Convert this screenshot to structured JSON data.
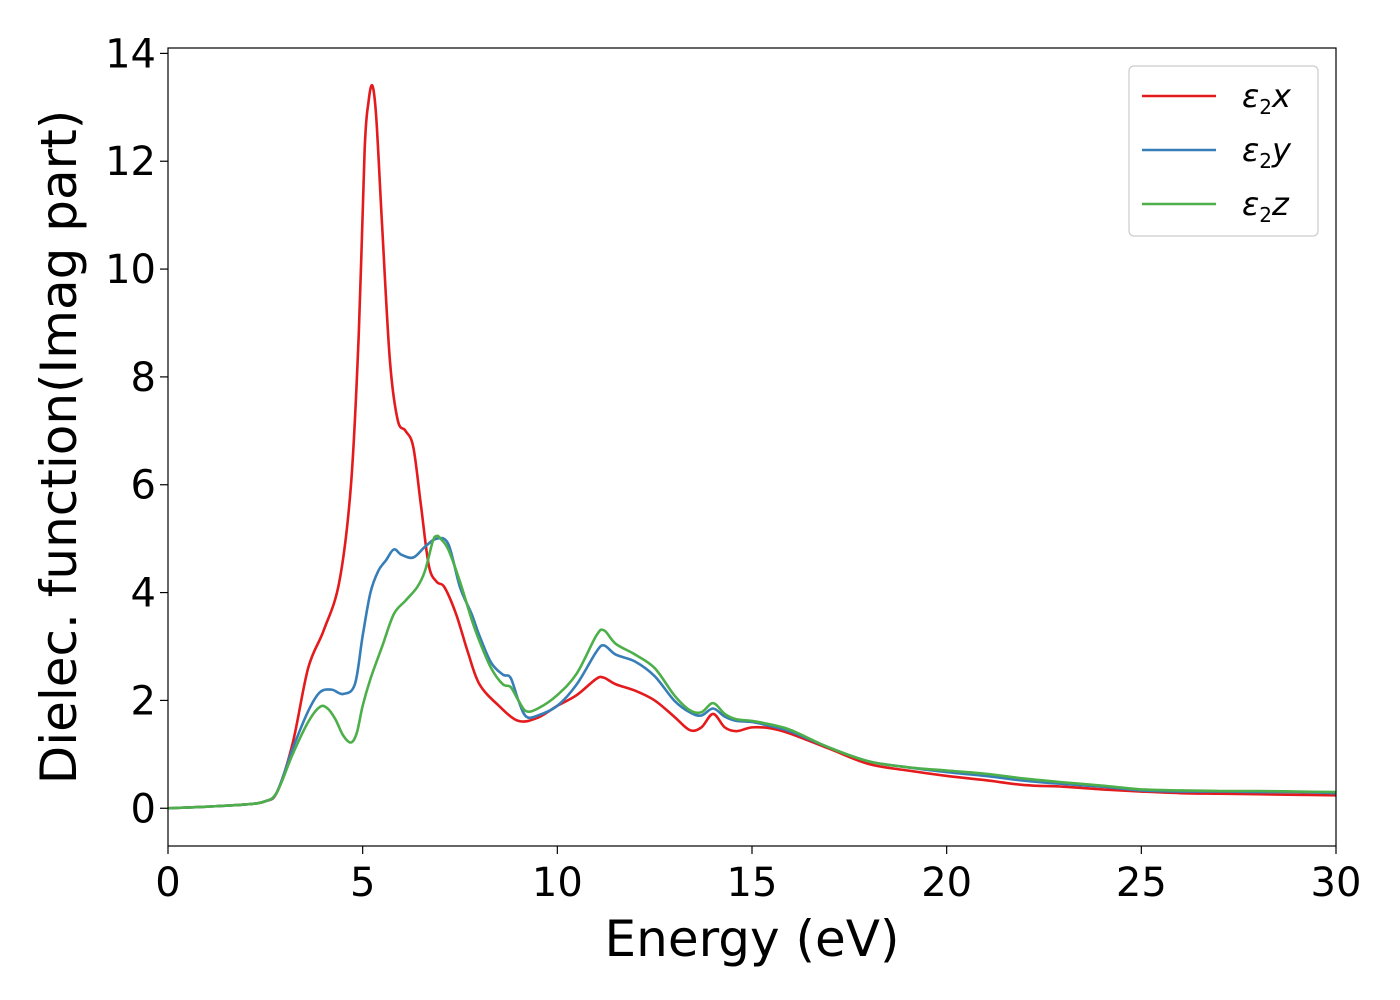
{
  "chart_data": {
    "type": "line",
    "xlabel": "Energy (eV)",
    "ylabel": "Dielec. function(Imag part)",
    "xlim": [
      0,
      30
    ],
    "ylim": [
      -0.7,
      14.1
    ],
    "xticks": [
      0,
      5,
      10,
      15,
      20,
      25,
      30
    ],
    "yticks": [
      0,
      2,
      4,
      6,
      8,
      10,
      12,
      14
    ],
    "grid": false,
    "legend_position": "top-right",
    "series": [
      {
        "name": "ε2x",
        "legend": {
          "base": "ε",
          "sub": "2",
          "suffix": "x"
        },
        "color": "#e41a1c",
        "x": [
          0,
          1,
          2,
          2.5,
          2.8,
          3.2,
          3.6,
          4.0,
          4.4,
          4.7,
          4.9,
          5.05,
          5.15,
          5.25,
          5.35,
          5.5,
          5.7,
          5.9,
          6.1,
          6.3,
          6.5,
          6.7,
          6.9,
          7.1,
          7.4,
          7.7,
          8.0,
          8.5,
          9.0,
          9.5,
          10.0,
          10.5,
          11.0,
          11.2,
          11.5,
          12.0,
          12.5,
          13.0,
          13.4,
          13.7,
          14.0,
          14.3,
          14.6,
          15.0,
          15.5,
          16.0,
          17.0,
          18.0,
          19.0,
          20.0,
          21.0,
          22.0,
          23.0,
          24.0,
          25.0,
          26.0,
          27.0,
          28.0,
          29.0,
          30.0
        ],
        "y": [
          0,
          0.03,
          0.07,
          0.13,
          0.3,
          1.2,
          2.6,
          3.3,
          4.2,
          6.0,
          8.8,
          12.2,
          13.1,
          13.4,
          12.8,
          10.8,
          8.3,
          7.2,
          7.0,
          6.7,
          5.6,
          4.5,
          4.2,
          4.1,
          3.6,
          2.9,
          2.3,
          1.9,
          1.62,
          1.68,
          1.9,
          2.1,
          2.4,
          2.42,
          2.3,
          2.18,
          2.0,
          1.7,
          1.45,
          1.5,
          1.75,
          1.5,
          1.43,
          1.5,
          1.48,
          1.38,
          1.1,
          0.82,
          0.7,
          0.6,
          0.52,
          0.43,
          0.4,
          0.35,
          0.31,
          0.28,
          0.27,
          0.26,
          0.25,
          0.24
        ]
      },
      {
        "name": "ε2y",
        "legend": {
          "base": "ε",
          "sub": "2",
          "suffix": "y"
        },
        "color": "#377eb8",
        "x": [
          0,
          1,
          2,
          2.5,
          2.8,
          3.2,
          3.6,
          3.9,
          4.2,
          4.5,
          4.8,
          5.0,
          5.2,
          5.4,
          5.6,
          5.8,
          6.0,
          6.3,
          6.6,
          6.9,
          7.2,
          7.5,
          7.8,
          8.0,
          8.3,
          8.6,
          8.8,
          9.0,
          9.2,
          9.5,
          10.0,
          10.5,
          11.0,
          11.2,
          11.5,
          12.0,
          12.5,
          13.0,
          13.4,
          13.7,
          14.0,
          14.3,
          14.6,
          15.0,
          15.5,
          16.0,
          17.0,
          18.0,
          19.0,
          20.0,
          21.0,
          22.0,
          23.0,
          24.0,
          25.0,
          26.0,
          27.0,
          28.0,
          29.0,
          30.0
        ],
        "y": [
          0,
          0.03,
          0.07,
          0.13,
          0.3,
          1.1,
          1.8,
          2.15,
          2.2,
          2.12,
          2.3,
          3.2,
          4.0,
          4.4,
          4.6,
          4.8,
          4.7,
          4.65,
          4.85,
          5.0,
          4.9,
          4.1,
          3.6,
          3.2,
          2.7,
          2.48,
          2.42,
          2.0,
          1.7,
          1.72,
          1.9,
          2.3,
          2.9,
          3.02,
          2.85,
          2.72,
          2.45,
          2.0,
          1.78,
          1.72,
          1.85,
          1.7,
          1.62,
          1.6,
          1.52,
          1.42,
          1.12,
          0.87,
          0.76,
          0.67,
          0.6,
          0.51,
          0.45,
          0.4,
          0.33,
          0.31,
          0.31,
          0.3,
          0.3,
          0.28
        ]
      },
      {
        "name": "ε2z",
        "legend": {
          "base": "ε",
          "sub": "2",
          "suffix": "z"
        },
        "color": "#4daf4a",
        "x": [
          0,
          1,
          2,
          2.5,
          2.8,
          3.2,
          3.6,
          3.9,
          4.1,
          4.3,
          4.5,
          4.7,
          4.85,
          5.0,
          5.2,
          5.5,
          5.8,
          6.1,
          6.4,
          6.6,
          6.8,
          6.9,
          7.0,
          7.2,
          7.5,
          7.8,
          8.0,
          8.3,
          8.6,
          8.8,
          9.0,
          9.2,
          9.5,
          10.0,
          10.5,
          11.0,
          11.2,
          11.5,
          12.0,
          12.5,
          13.0,
          13.4,
          13.7,
          14.0,
          14.3,
          14.6,
          15.0,
          15.5,
          16.0,
          17.0,
          18.0,
          19.0,
          20.0,
          21.0,
          22.0,
          23.0,
          24.0,
          25.0,
          26.0,
          27.0,
          28.0,
          29.0,
          30.0
        ],
        "y": [
          0,
          0.03,
          0.07,
          0.13,
          0.3,
          1.0,
          1.6,
          1.88,
          1.85,
          1.65,
          1.35,
          1.22,
          1.4,
          1.9,
          2.4,
          3.0,
          3.6,
          3.85,
          4.1,
          4.4,
          4.95,
          5.05,
          5.0,
          4.8,
          4.2,
          3.5,
          3.1,
          2.6,
          2.3,
          2.25,
          2.0,
          1.8,
          1.85,
          2.1,
          2.5,
          3.2,
          3.3,
          3.05,
          2.85,
          2.6,
          2.1,
          1.82,
          1.78,
          1.95,
          1.75,
          1.65,
          1.62,
          1.55,
          1.45,
          1.12,
          0.87,
          0.76,
          0.7,
          0.64,
          0.55,
          0.48,
          0.42,
          0.35,
          0.33,
          0.32,
          0.32,
          0.31,
          0.3
        ]
      }
    ]
  }
}
